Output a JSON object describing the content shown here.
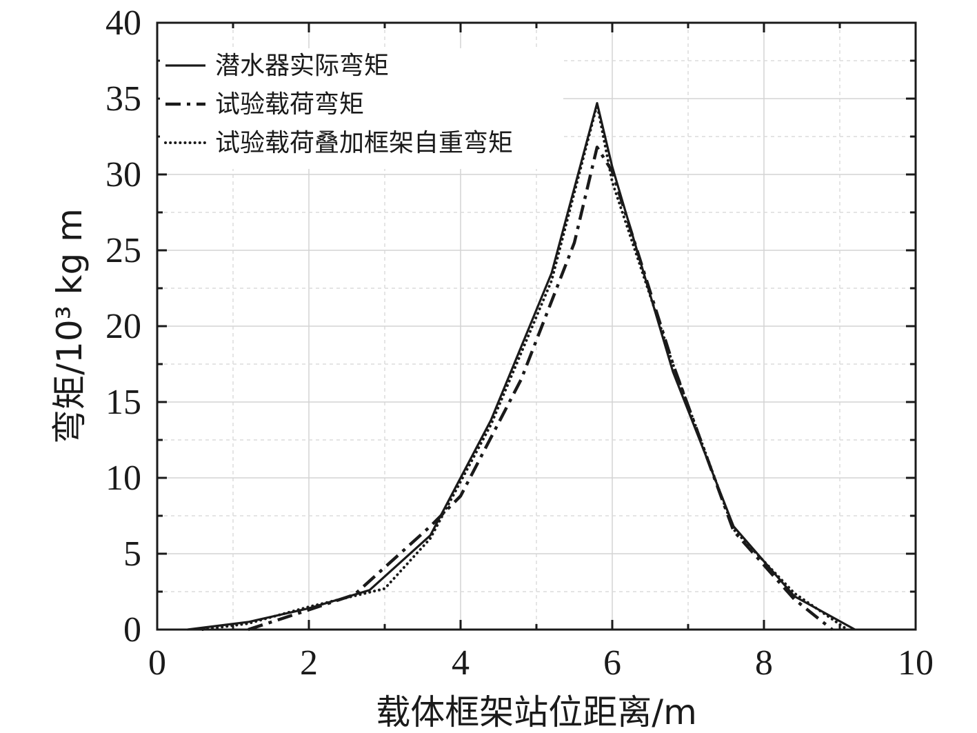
{
  "chart_data": {
    "type": "line",
    "xlabel": "载体框架站位距离/m",
    "ylabel": "弯矩/10³ kg m",
    "xlim": [
      0,
      10
    ],
    "ylim": [
      0,
      40
    ],
    "x_ticks": [
      "0",
      "2",
      "4",
      "6",
      "8",
      "10"
    ],
    "y_ticks": [
      "0",
      "5",
      "10",
      "15",
      "20",
      "25",
      "30",
      "35",
      "40"
    ],
    "grid": true,
    "legend_position": "top-left",
    "series": [
      {
        "name": "潜水器实际弯矩",
        "style": "solid",
        "points": [
          [
            0.4,
            0
          ],
          [
            1.2,
            0.5
          ],
          [
            2.0,
            1.4
          ],
          [
            2.8,
            2.6
          ],
          [
            3.6,
            6.2
          ],
          [
            4.4,
            13.8
          ],
          [
            5.2,
            23.5
          ],
          [
            5.8,
            34.7
          ],
          [
            6.0,
            30.5
          ],
          [
            6.8,
            17.0
          ],
          [
            7.6,
            6.8
          ],
          [
            8.4,
            2.2
          ],
          [
            9.2,
            0
          ]
        ]
      },
      {
        "name": "试验载荷弯矩",
        "style": "dashdot",
        "points": [
          [
            1.2,
            0
          ],
          [
            2.0,
            1.3
          ],
          [
            2.6,
            2.3
          ],
          [
            3.6,
            6.8
          ],
          [
            4.0,
            8.8
          ],
          [
            4.8,
            16.5
          ],
          [
            5.5,
            25.5
          ],
          [
            5.8,
            31.8
          ],
          [
            6.0,
            30.2
          ],
          [
            6.8,
            17.5
          ],
          [
            7.6,
            6.5
          ],
          [
            8.4,
            2.0
          ],
          [
            8.9,
            0
          ]
        ]
      },
      {
        "name": "试验载荷叠加框架自重弯矩",
        "style": "dotted",
        "points": [
          [
            0.6,
            0
          ],
          [
            1.2,
            0.4
          ],
          [
            2.0,
            1.5
          ],
          [
            3.0,
            2.7
          ],
          [
            3.6,
            6.0
          ],
          [
            4.4,
            13.5
          ],
          [
            5.2,
            23.0
          ],
          [
            5.8,
            34.6
          ],
          [
            6.0,
            29.5
          ],
          [
            6.8,
            17.5
          ],
          [
            7.6,
            6.6
          ],
          [
            8.4,
            2.4
          ],
          [
            9.1,
            0
          ]
        ]
      }
    ]
  }
}
